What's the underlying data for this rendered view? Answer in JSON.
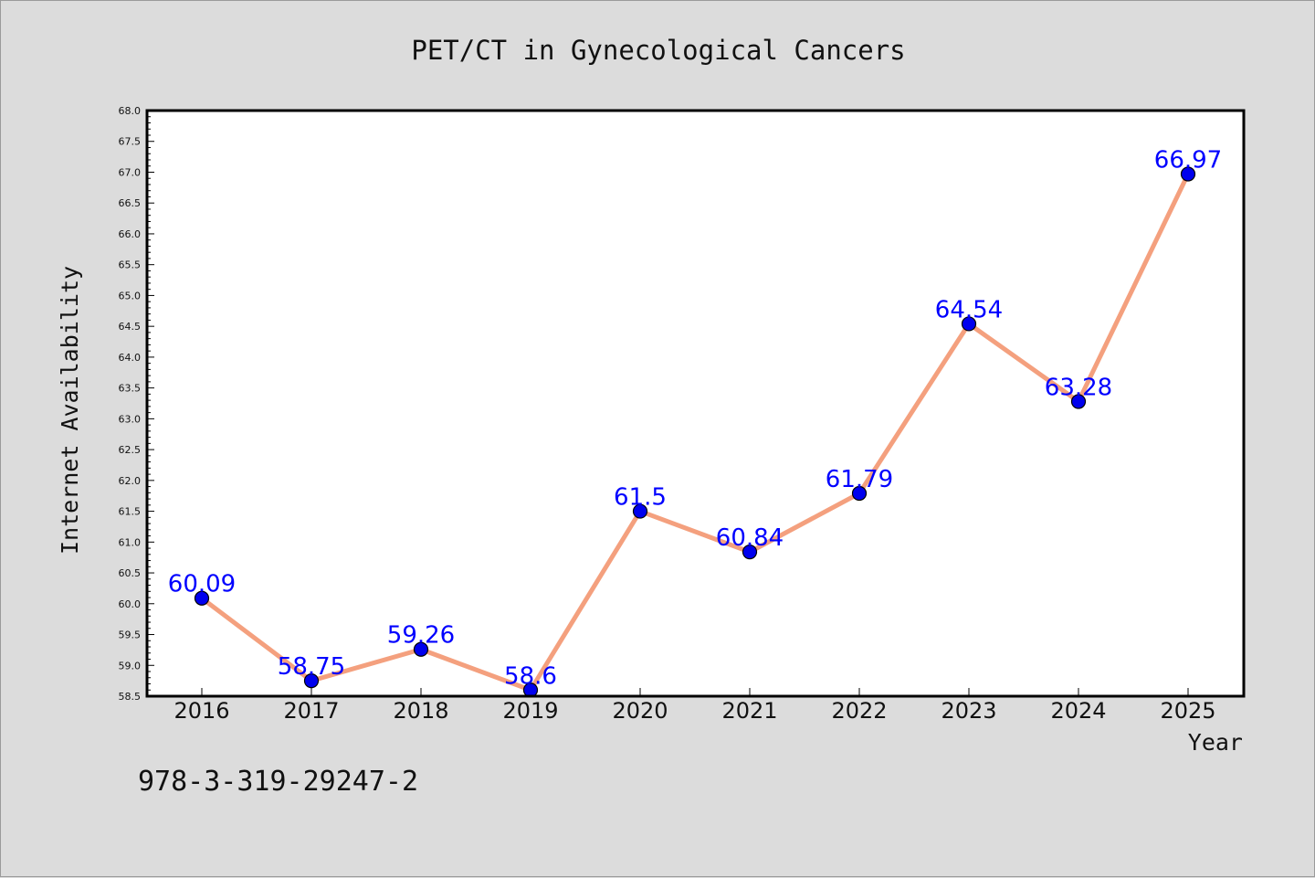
{
  "chart_data": {
    "type": "line",
    "title": "PET/CT in Gynecological Cancers",
    "xlabel": "Year",
    "ylabel": "Internet Availability",
    "categories": [
      "2016",
      "2017",
      "2018",
      "2019",
      "2020",
      "2021",
      "2022",
      "2023",
      "2024",
      "2025"
    ],
    "series": [
      {
        "values": [
          60.09,
          58.75,
          59.26,
          58.6,
          61.5,
          60.84,
          61.79,
          64.54,
          63.28,
          66.97
        ],
        "labels": [
          "60.09",
          "58.75",
          "59.26",
          "58.6",
          "61.5",
          "60.84",
          "61.79",
          "64.54",
          "63.28",
          "66.97"
        ],
        "line_color": "#f4a07e",
        "marker_color": "#0000ee"
      }
    ],
    "ylim": [
      58.5,
      68.0
    ],
    "yticks": [
      "58.5",
      "59.0",
      "59.5",
      "60.0",
      "60.5",
      "61.0",
      "61.5",
      "62.0",
      "62.5",
      "63.0",
      "63.5",
      "64.0",
      "64.5",
      "65.0",
      "65.5",
      "66.0",
      "66.5",
      "67.0",
      "67.5",
      "68.0"
    ],
    "grid": false,
    "legend": "none",
    "background_color": "#dcdcdc",
    "plot_background_color": "#ffffff",
    "label_color": "#0000ff"
  },
  "annotation": "978-3-319-29247-2"
}
